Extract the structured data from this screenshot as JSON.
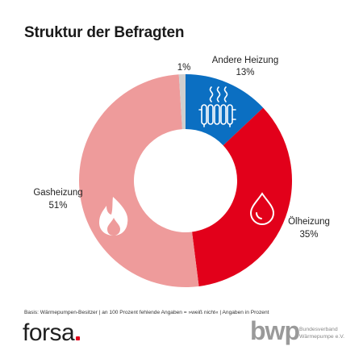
{
  "title": "Struktur der Befragten",
  "chart_data": {
    "type": "pie",
    "title": "Struktur der Befragten",
    "slices": [
      {
        "label": "Andere Heizung",
        "value": 13,
        "display": "13%",
        "color": "#0b6fc2"
      },
      {
        "label": "Ölheizung",
        "value": 35,
        "display": "35%",
        "color": "#e2001a"
      },
      {
        "label": "Gasheizung",
        "value": 51,
        "display": "51%",
        "color": "#ee9b9b"
      },
      {
        "label": "",
        "value": 1,
        "display": "1%",
        "color": "#cfcfcf"
      }
    ]
  },
  "footnote": "Basis: Wärmepumpen-Besitzer | an 100 Prozent fehlende Angaben = »weiß nicht« | Angaben in Prozent",
  "logos": {
    "forsa": "forsa",
    "bwp": "bwp",
    "bwp_line1": "Bundesverband",
    "bwp_line2": "Wärmepumpe e.V."
  },
  "icons": {
    "andere": "radiator-icon",
    "oel": "oil-drop-icon",
    "gas": "flame-icon"
  }
}
